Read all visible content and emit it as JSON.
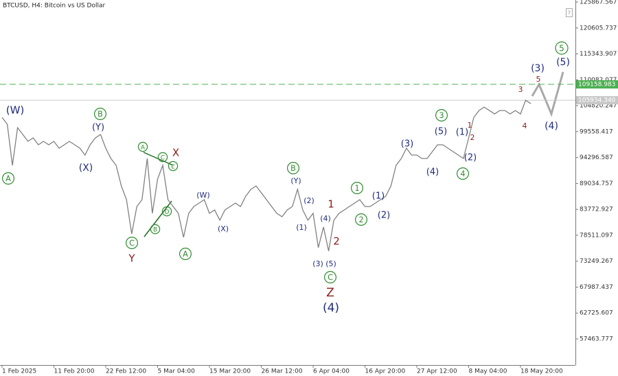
{
  "chart_data": {
    "type": "line",
    "title": "BTCUSD, H4: Bitcoin vs US Dollar",
    "categories": [
      "1 Feb 2025",
      null,
      null,
      null,
      null,
      null,
      null,
      null,
      null,
      null,
      "11 Feb 20:00",
      null,
      null,
      null,
      null,
      null,
      null,
      null,
      null,
      null,
      "22 Feb 12:00",
      null,
      null,
      null,
      null,
      null,
      null,
      null,
      null,
      null,
      "5 Mar 04:00",
      null,
      null,
      null,
      null,
      null,
      null,
      null,
      null,
      null,
      "15 Mar 20:00",
      null,
      null,
      null,
      null,
      null,
      null,
      null,
      null,
      null,
      "26 Mar 12:00",
      null,
      null,
      null,
      null,
      null,
      null,
      null,
      null,
      null,
      "6 Apr 04:00",
      null,
      null,
      null,
      null,
      null,
      null,
      null,
      null,
      null,
      "16 Apr 20:00",
      null,
      null,
      null,
      null,
      null,
      null,
      null,
      null,
      null,
      "27 Apr 12:00",
      null,
      null,
      null,
      null,
      null,
      null,
      null,
      null,
      null,
      "8 May 04:00",
      null,
      null,
      null,
      null,
      null,
      null,
      null,
      null,
      null,
      "18 May 20:00",
      null,
      null,
      null,
      null,
      null,
      null,
      null,
      null,
      null,
      null
    ],
    "series": [
      {
        "name": "BTCUSD",
        "color": "#808080",
        "values": [
          102454,
          101062,
          92710,
          100366,
          98974,
          97582,
          98278,
          96886,
          97582,
          96886,
          97582,
          96190,
          96886,
          97582,
          96886,
          96190,
          94798,
          96886,
          98278,
          98974,
          96190,
          94102,
          92710,
          88534,
          85750,
          78790,
          84358,
          85750,
          94102,
          82966,
          89926,
          92710,
          85750,
          84358,
          82966,
          78094,
          82966,
          84358,
          85054,
          85750,
          82966,
          83662,
          81574,
          83662,
          84358,
          85054,
          84358,
          86446,
          87838,
          88534,
          87142,
          85750,
          84358,
          82966,
          82270,
          83662,
          84358,
          87838,
          83662,
          81574,
          82966,
          76006,
          80182,
          75310,
          81574,
          82966,
          83662,
          84358,
          85054,
          85750,
          84358,
          84358,
          85054,
          85750,
          86446,
          88534,
          92710,
          94102,
          96190,
          94798,
          94798,
          94102,
          94102,
          95494,
          96886,
          96886,
          96190,
          95494,
          94798,
          94102,
          98278,
          102454,
          103846,
          104542,
          103846,
          103150,
          103846,
          103846,
          103150,
          103846,
          103150,
          105934,
          105238,
          null,
          null,
          null,
          null,
          null,
          null,
          null,
          null
        ]
      }
    ],
    "ylim": [
      52170,
      126286
    ],
    "yticks": [
      125867.567,
      120605.737,
      115343.907,
      110082.077,
      104820.247,
      99558.417,
      94296.587,
      89034.757,
      83772.927,
      78511.097,
      73249.267,
      67987.437,
      62725.607,
      57463.777
    ],
    "levels": [
      {
        "value": 109158.983,
        "label": "109158.983",
        "color": "#4caf50",
        "dashed": true
      },
      {
        "value": 105934.34,
        "label": "105934.340",
        "color": "#c8c8c8",
        "dashed": false
      }
    ],
    "annotations": [
      {
        "text": "(W)",
        "color": "#1f2a80",
        "circled": false
      },
      {
        "text": "A",
        "color": "#2e8b2e",
        "circled": true
      },
      {
        "text": "B",
        "color": "#2e8b2e",
        "circled": true
      },
      {
        "text": "(Y)",
        "color": "#1f2a80",
        "circled": false
      },
      {
        "text": "(X)",
        "color": "#1f2a80",
        "circled": false
      },
      {
        "text": "A",
        "color": "#2e8b2e",
        "circled": true
      },
      {
        "text": "X",
        "color": "#8b1a1a",
        "circled": false
      },
      {
        "text": "C",
        "color": "#2e8b2e",
        "circled": true
      },
      {
        "text": "E",
        "color": "#2e8b2e",
        "circled": true
      },
      {
        "text": "D",
        "color": "#2e8b2e",
        "circled": true
      },
      {
        "text": "B",
        "color": "#2e8b2e",
        "circled": true
      },
      {
        "text": "C",
        "color": "#2e8b2e",
        "circled": true
      },
      {
        "text": "Y",
        "color": "#8b1a1a",
        "circled": false
      },
      {
        "text": "A",
        "color": "#2e8b2e",
        "circled": true
      },
      {
        "text": "(W)",
        "color": "#1f2a80",
        "circled": false
      },
      {
        "text": "(X)",
        "color": "#1f2a80",
        "circled": false
      },
      {
        "text": "B",
        "color": "#2e8b2e",
        "circled": true
      },
      {
        "text": "(Y)",
        "color": "#1f2a80",
        "circled": false
      },
      {
        "text": "(2)",
        "color": "#1f2a80",
        "circled": false
      },
      {
        "text": "(1)",
        "color": "#1f2a80",
        "circled": false
      },
      {
        "text": "(4)",
        "color": "#1f2a80",
        "circled": false
      },
      {
        "text": "1",
        "color": "#8b1a1a",
        "circled": false
      },
      {
        "text": "2",
        "color": "#8b1a1a",
        "circled": false
      },
      {
        "text": "(3)",
        "color": "#1f2a80",
        "circled": false
      },
      {
        "text": "(5)",
        "color": "#1f2a80",
        "circled": false
      },
      {
        "text": "C",
        "color": "#2e8b2e",
        "circled": true
      },
      {
        "text": "Z",
        "color": "#8b1a1a",
        "circled": false
      },
      {
        "text": "(4)",
        "color": "#1f2a80",
        "circled": false
      },
      {
        "text": "1",
        "color": "#2e8b2e",
        "circled": true
      },
      {
        "text": "2",
        "color": "#2e8b2e",
        "circled": true
      },
      {
        "text": "(1)",
        "color": "#1f2a80",
        "circled": false
      },
      {
        "text": "(2)",
        "color": "#1f2a80",
        "circled": false
      },
      {
        "text": "(3)",
        "color": "#1f2a80",
        "circled": false
      },
      {
        "text": "(4)",
        "color": "#1f2a80",
        "circled": false
      },
      {
        "text": "3",
        "color": "#2e8b2e",
        "circled": true
      },
      {
        "text": "(5)",
        "color": "#1f2a80",
        "circled": false
      },
      {
        "text": "(1)",
        "color": "#1f2a80",
        "circled": false
      },
      {
        "text": "1",
        "color": "#8b1a1a",
        "circled": false
      },
      {
        "text": "2",
        "color": "#8b1a1a",
        "circled": false
      },
      {
        "text": "(2)",
        "color": "#1f2a80",
        "circled": false
      },
      {
        "text": "4",
        "color": "#2e8b2e",
        "circled": true
      },
      {
        "text": "3",
        "color": "#8b1a1a",
        "circled": false
      },
      {
        "text": "4",
        "color": "#8b1a1a",
        "circled": false
      },
      {
        "text": "5",
        "color": "#8b1a1a",
        "circled": false
      },
      {
        "text": "(3)",
        "color": "#1f2a80",
        "circled": false
      },
      {
        "text": "(5)",
        "color": "#1f2a80",
        "circled": false
      },
      {
        "text": "5",
        "color": "#2e8b2e",
        "circled": true
      },
      {
        "text": "(4)",
        "color": "#1f2a80",
        "circled": false
      }
    ]
  }
}
